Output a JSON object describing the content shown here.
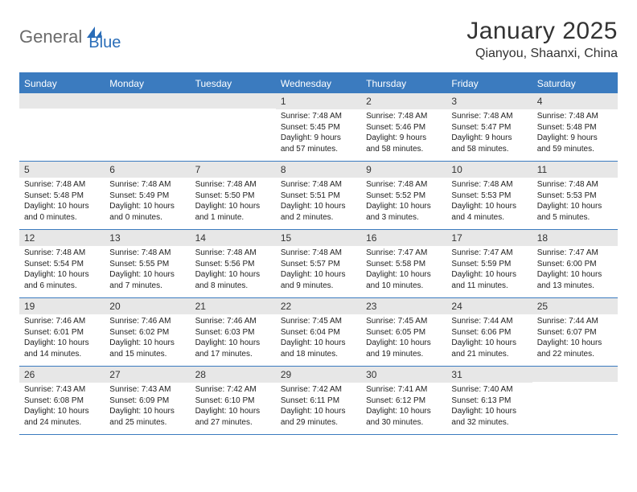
{
  "logo": {
    "general": "General",
    "blue": "Blue"
  },
  "title": "January 2025",
  "location": "Qianyou, Shaanxi, China",
  "colors": {
    "header_bar": "#3b7bbf",
    "daynum_bg": "#e7e7e7",
    "text": "#222222",
    "logo_gray": "#6b6b6b",
    "logo_blue": "#2a6db8"
  },
  "weekdays": [
    "Sunday",
    "Monday",
    "Tuesday",
    "Wednesday",
    "Thursday",
    "Friday",
    "Saturday"
  ],
  "weeks": [
    [
      {
        "n": "",
        "sr": "",
        "ss": "",
        "dl": ""
      },
      {
        "n": "",
        "sr": "",
        "ss": "",
        "dl": ""
      },
      {
        "n": "",
        "sr": "",
        "ss": "",
        "dl": ""
      },
      {
        "n": "1",
        "sr": "Sunrise: 7:48 AM",
        "ss": "Sunset: 5:45 PM",
        "dl": "Daylight: 9 hours and 57 minutes."
      },
      {
        "n": "2",
        "sr": "Sunrise: 7:48 AM",
        "ss": "Sunset: 5:46 PM",
        "dl": "Daylight: 9 hours and 58 minutes."
      },
      {
        "n": "3",
        "sr": "Sunrise: 7:48 AM",
        "ss": "Sunset: 5:47 PM",
        "dl": "Daylight: 9 hours and 58 minutes."
      },
      {
        "n": "4",
        "sr": "Sunrise: 7:48 AM",
        "ss": "Sunset: 5:48 PM",
        "dl": "Daylight: 9 hours and 59 minutes."
      }
    ],
    [
      {
        "n": "5",
        "sr": "Sunrise: 7:48 AM",
        "ss": "Sunset: 5:48 PM",
        "dl": "Daylight: 10 hours and 0 minutes."
      },
      {
        "n": "6",
        "sr": "Sunrise: 7:48 AM",
        "ss": "Sunset: 5:49 PM",
        "dl": "Daylight: 10 hours and 0 minutes."
      },
      {
        "n": "7",
        "sr": "Sunrise: 7:48 AM",
        "ss": "Sunset: 5:50 PM",
        "dl": "Daylight: 10 hours and 1 minute."
      },
      {
        "n": "8",
        "sr": "Sunrise: 7:48 AM",
        "ss": "Sunset: 5:51 PM",
        "dl": "Daylight: 10 hours and 2 minutes."
      },
      {
        "n": "9",
        "sr": "Sunrise: 7:48 AM",
        "ss": "Sunset: 5:52 PM",
        "dl": "Daylight: 10 hours and 3 minutes."
      },
      {
        "n": "10",
        "sr": "Sunrise: 7:48 AM",
        "ss": "Sunset: 5:53 PM",
        "dl": "Daylight: 10 hours and 4 minutes."
      },
      {
        "n": "11",
        "sr": "Sunrise: 7:48 AM",
        "ss": "Sunset: 5:53 PM",
        "dl": "Daylight: 10 hours and 5 minutes."
      }
    ],
    [
      {
        "n": "12",
        "sr": "Sunrise: 7:48 AM",
        "ss": "Sunset: 5:54 PM",
        "dl": "Daylight: 10 hours and 6 minutes."
      },
      {
        "n": "13",
        "sr": "Sunrise: 7:48 AM",
        "ss": "Sunset: 5:55 PM",
        "dl": "Daylight: 10 hours and 7 minutes."
      },
      {
        "n": "14",
        "sr": "Sunrise: 7:48 AM",
        "ss": "Sunset: 5:56 PM",
        "dl": "Daylight: 10 hours and 8 minutes."
      },
      {
        "n": "15",
        "sr": "Sunrise: 7:48 AM",
        "ss": "Sunset: 5:57 PM",
        "dl": "Daylight: 10 hours and 9 minutes."
      },
      {
        "n": "16",
        "sr": "Sunrise: 7:47 AM",
        "ss": "Sunset: 5:58 PM",
        "dl": "Daylight: 10 hours and 10 minutes."
      },
      {
        "n": "17",
        "sr": "Sunrise: 7:47 AM",
        "ss": "Sunset: 5:59 PM",
        "dl": "Daylight: 10 hours and 11 minutes."
      },
      {
        "n": "18",
        "sr": "Sunrise: 7:47 AM",
        "ss": "Sunset: 6:00 PM",
        "dl": "Daylight: 10 hours and 13 minutes."
      }
    ],
    [
      {
        "n": "19",
        "sr": "Sunrise: 7:46 AM",
        "ss": "Sunset: 6:01 PM",
        "dl": "Daylight: 10 hours and 14 minutes."
      },
      {
        "n": "20",
        "sr": "Sunrise: 7:46 AM",
        "ss": "Sunset: 6:02 PM",
        "dl": "Daylight: 10 hours and 15 minutes."
      },
      {
        "n": "21",
        "sr": "Sunrise: 7:46 AM",
        "ss": "Sunset: 6:03 PM",
        "dl": "Daylight: 10 hours and 17 minutes."
      },
      {
        "n": "22",
        "sr": "Sunrise: 7:45 AM",
        "ss": "Sunset: 6:04 PM",
        "dl": "Daylight: 10 hours and 18 minutes."
      },
      {
        "n": "23",
        "sr": "Sunrise: 7:45 AM",
        "ss": "Sunset: 6:05 PM",
        "dl": "Daylight: 10 hours and 19 minutes."
      },
      {
        "n": "24",
        "sr": "Sunrise: 7:44 AM",
        "ss": "Sunset: 6:06 PM",
        "dl": "Daylight: 10 hours and 21 minutes."
      },
      {
        "n": "25",
        "sr": "Sunrise: 7:44 AM",
        "ss": "Sunset: 6:07 PM",
        "dl": "Daylight: 10 hours and 22 minutes."
      }
    ],
    [
      {
        "n": "26",
        "sr": "Sunrise: 7:43 AM",
        "ss": "Sunset: 6:08 PM",
        "dl": "Daylight: 10 hours and 24 minutes."
      },
      {
        "n": "27",
        "sr": "Sunrise: 7:43 AM",
        "ss": "Sunset: 6:09 PM",
        "dl": "Daylight: 10 hours and 25 minutes."
      },
      {
        "n": "28",
        "sr": "Sunrise: 7:42 AM",
        "ss": "Sunset: 6:10 PM",
        "dl": "Daylight: 10 hours and 27 minutes."
      },
      {
        "n": "29",
        "sr": "Sunrise: 7:42 AM",
        "ss": "Sunset: 6:11 PM",
        "dl": "Daylight: 10 hours and 29 minutes."
      },
      {
        "n": "30",
        "sr": "Sunrise: 7:41 AM",
        "ss": "Sunset: 6:12 PM",
        "dl": "Daylight: 10 hours and 30 minutes."
      },
      {
        "n": "31",
        "sr": "Sunrise: 7:40 AM",
        "ss": "Sunset: 6:13 PM",
        "dl": "Daylight: 10 hours and 32 minutes."
      },
      {
        "n": "",
        "sr": "",
        "ss": "",
        "dl": ""
      }
    ]
  ]
}
